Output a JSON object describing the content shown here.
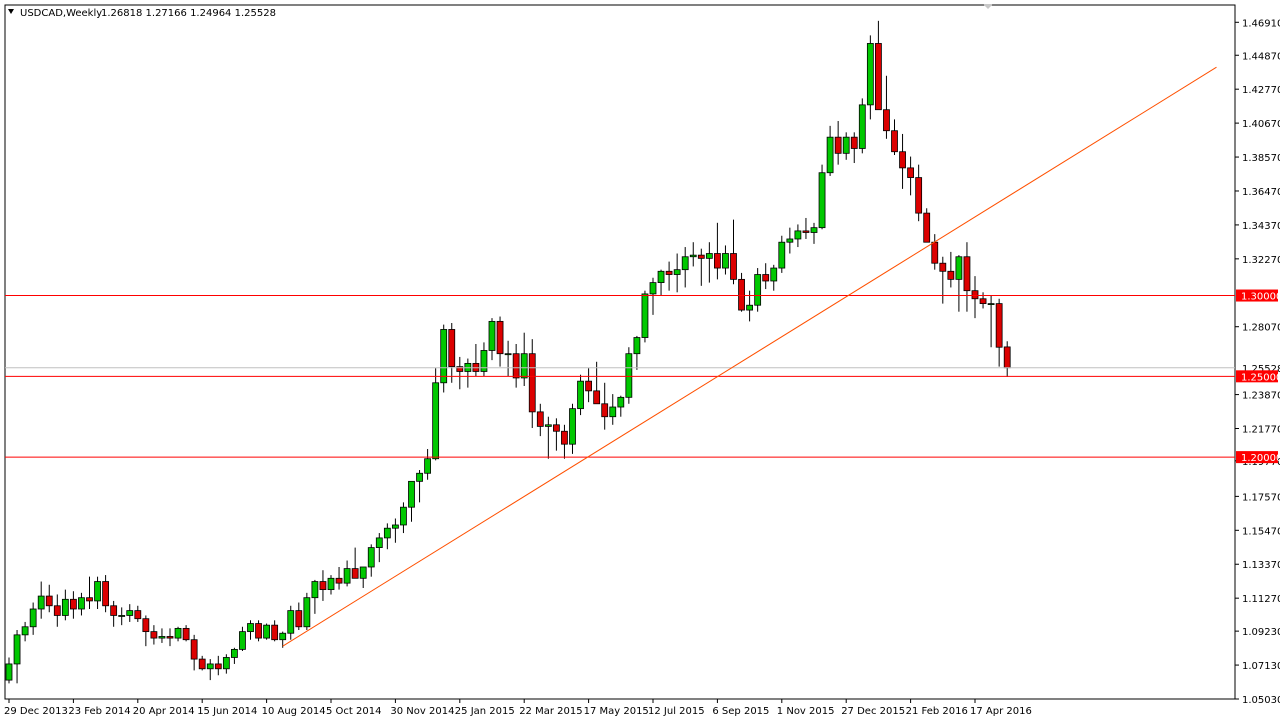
{
  "header": {
    "symbol": "USDCAD,Weekly",
    "ohlc": "1.26818 1.27166 1.24964 1.25528",
    "dropdown_icon": "triangle-down-icon"
  },
  "colors": {
    "background": "#ffffff",
    "frame": "#000000",
    "bull": "#00c800",
    "bear": "#dc0000",
    "hline": "#ff0000",
    "trendline": "#ff5000",
    "bidline": "#c0c0c0"
  },
  "chart_data": {
    "type": "candlestick",
    "ylim": [
      1.0503,
      1.4798
    ],
    "y_ticks": [
      "1.46910",
      "1.44870",
      "1.42770",
      "1.40670",
      "1.38570",
      "1.36470",
      "1.34370",
      "1.32270",
      "1.30000",
      "1.28070",
      "1.25528",
      "1.25000",
      "1.23870",
      "1.21770",
      "1.19770",
      "1.17570",
      "1.15470",
      "1.13370",
      "1.11270",
      "1.09230",
      "1.07130",
      "1.05030"
    ],
    "y_tick_values": [
      1.4691,
      1.4487,
      1.4277,
      1.4067,
      1.3857,
      1.3647,
      1.3437,
      1.3227,
      1.3,
      1.2807,
      1.25528,
      1.25,
      1.2387,
      1.2177,
      1.1977,
      1.1757,
      1.1547,
      1.1337,
      1.1127,
      1.0923,
      1.0713,
      1.0503
    ],
    "x_labels": [
      {
        "text": "29 Dec 2013",
        "index": 0
      },
      {
        "text": "23 Feb 2014",
        "index": 8
      },
      {
        "text": "20 Apr 2014",
        "index": 16
      },
      {
        "text": "15 Jun 2014",
        "index": 24
      },
      {
        "text": "10 Aug 2014",
        "index": 32
      },
      {
        "text": "5 Oct 2014",
        "index": 40
      },
      {
        "text": "30 Nov 2014",
        "index": 48
      },
      {
        "text": "25 Jan 2015",
        "index": 56
      },
      {
        "text": "22 Mar 2015",
        "index": 64
      },
      {
        "text": "17 May 2015",
        "index": 72
      },
      {
        "text": "12 Jul 2015",
        "index": 80
      },
      {
        "text": "6 Sep 2015",
        "index": 88
      },
      {
        "text": "1 Nov 2015",
        "index": 96
      },
      {
        "text": "27 Dec 2015",
        "index": 104
      },
      {
        "text": "21 Feb 2016",
        "index": 112
      },
      {
        "text": "17 Apr 2016",
        "index": 120
      }
    ],
    "horizontal_lines": [
      {
        "value": 1.3,
        "label": "1.30000"
      },
      {
        "value": 1.25,
        "label": "1.25000"
      },
      {
        "value": 1.2,
        "label": "1.20000"
      }
    ],
    "bid_line": {
      "value": 1.25528,
      "label": "1.25528"
    },
    "trendline": {
      "from": {
        "index": 34,
        "value": 1.083
      },
      "to": {
        "index": 150,
        "value": 1.4413
      }
    },
    "candles": [
      [
        1.062,
        1.076,
        1.06,
        1.072
      ],
      [
        1.072,
        1.093,
        1.06,
        1.09
      ],
      [
        1.09,
        1.098,
        1.086,
        1.095
      ],
      [
        1.095,
        1.11,
        1.09,
        1.106
      ],
      [
        1.106,
        1.123,
        1.1,
        1.114
      ],
      [
        1.114,
        1.121,
        1.104,
        1.108
      ],
      [
        1.108,
        1.115,
        1.095,
        1.102
      ],
      [
        1.102,
        1.118,
        1.099,
        1.112
      ],
      [
        1.112,
        1.117,
        1.1,
        1.106
      ],
      [
        1.106,
        1.116,
        1.102,
        1.113
      ],
      [
        1.113,
        1.126,
        1.106,
        1.111
      ],
      [
        1.111,
        1.126,
        1.106,
        1.123
      ],
      [
        1.123,
        1.127,
        1.104,
        1.108
      ],
      [
        1.108,
        1.111,
        1.095,
        1.102
      ],
      [
        1.102,
        1.107,
        1.096,
        1.102
      ],
      [
        1.102,
        1.109,
        1.098,
        1.105
      ],
      [
        1.105,
        1.108,
        1.098,
        1.1
      ],
      [
        1.1,
        1.102,
        1.083,
        1.092
      ],
      [
        1.092,
        1.096,
        1.084,
        1.088
      ],
      [
        1.088,
        1.094,
        1.085,
        1.089
      ],
      [
        1.089,
        1.094,
        1.083,
        1.088
      ],
      [
        1.088,
        1.095,
        1.086,
        1.094
      ],
      [
        1.094,
        1.096,
        1.086,
        1.087
      ],
      [
        1.087,
        1.09,
        1.068,
        1.075
      ],
      [
        1.075,
        1.077,
        1.068,
        1.069
      ],
      [
        1.069,
        1.075,
        1.062,
        1.072
      ],
      [
        1.072,
        1.077,
        1.065,
        1.069
      ],
      [
        1.069,
        1.078,
        1.066,
        1.076
      ],
      [
        1.076,
        1.082,
        1.072,
        1.081
      ],
      [
        1.081,
        1.095,
        1.08,
        1.092
      ],
      [
        1.092,
        1.099,
        1.087,
        1.097
      ],
      [
        1.097,
        1.099,
        1.086,
        1.088
      ],
      [
        1.088,
        1.097,
        1.087,
        1.096
      ],
      [
        1.096,
        1.099,
        1.086,
        1.087
      ],
      [
        1.087,
        1.092,
        1.082,
        1.091
      ],
      [
        1.091,
        1.108,
        1.087,
        1.105
      ],
      [
        1.105,
        1.11,
        1.093,
        1.095
      ],
      [
        1.095,
        1.116,
        1.093,
        1.113
      ],
      [
        1.113,
        1.124,
        1.103,
        1.123
      ],
      [
        1.123,
        1.13,
        1.111,
        1.118
      ],
      [
        1.118,
        1.127,
        1.115,
        1.125
      ],
      [
        1.125,
        1.132,
        1.118,
        1.122
      ],
      [
        1.122,
        1.136,
        1.12,
        1.131
      ],
      [
        1.131,
        1.144,
        1.126,
        1.125
      ],
      [
        1.125,
        1.132,
        1.119,
        1.132
      ],
      [
        1.132,
        1.146,
        1.126,
        1.144
      ],
      [
        1.144,
        1.153,
        1.135,
        1.15
      ],
      [
        1.15,
        1.159,
        1.143,
        1.156
      ],
      [
        1.156,
        1.162,
        1.147,
        1.158
      ],
      [
        1.158,
        1.172,
        1.153,
        1.169
      ],
      [
        1.169,
        1.185,
        1.16,
        1.185
      ],
      [
        1.185,
        1.192,
        1.172,
        1.19
      ],
      [
        1.19,
        1.205,
        1.186,
        1.199
      ],
      [
        1.199,
        1.255,
        1.198,
        1.246
      ],
      [
        1.246,
        1.282,
        1.24,
        1.279
      ],
      [
        1.279,
        1.283,
        1.246,
        1.256
      ],
      [
        1.256,
        1.262,
        1.242,
        1.253
      ],
      [
        1.253,
        1.261,
        1.243,
        1.258
      ],
      [
        1.258,
        1.27,
        1.25,
        1.253
      ],
      [
        1.253,
        1.271,
        1.25,
        1.266
      ],
      [
        1.266,
        1.286,
        1.26,
        1.284
      ],
      [
        1.284,
        1.287,
        1.256,
        1.264
      ],
      [
        1.264,
        1.272,
        1.25,
        1.264
      ],
      [
        1.264,
        1.27,
        1.243,
        1.249
      ],
      [
        1.249,
        1.277,
        1.244,
        1.264
      ],
      [
        1.264,
        1.273,
        1.218,
        1.228
      ],
      [
        1.228,
        1.233,
        1.213,
        1.219
      ],
      [
        1.219,
        1.225,
        1.199,
        1.22
      ],
      [
        1.22,
        1.224,
        1.204,
        1.216
      ],
      [
        1.216,
        1.22,
        1.199,
        1.208
      ],
      [
        1.208,
        1.233,
        1.202,
        1.23
      ],
      [
        1.23,
        1.251,
        1.226,
        1.247
      ],
      [
        1.247,
        1.255,
        1.234,
        1.241
      ],
      [
        1.241,
        1.259,
        1.235,
        1.233
      ],
      [
        1.233,
        1.246,
        1.217,
        1.225
      ],
      [
        1.225,
        1.239,
        1.22,
        1.231
      ],
      [
        1.231,
        1.238,
        1.225,
        1.237
      ],
      [
        1.237,
        1.268,
        1.233,
        1.264
      ],
      [
        1.264,
        1.275,
        1.254,
        1.274
      ],
      [
        1.274,
        1.303,
        1.271,
        1.301
      ],
      [
        1.301,
        1.311,
        1.288,
        1.308
      ],
      [
        1.308,
        1.316,
        1.3,
        1.315
      ],
      [
        1.315,
        1.321,
        1.303,
        1.313
      ],
      [
        1.313,
        1.326,
        1.302,
        1.316
      ],
      [
        1.316,
        1.33,
        1.305,
        1.324
      ],
      [
        1.324,
        1.333,
        1.318,
        1.325
      ],
      [
        1.325,
        1.329,
        1.306,
        1.323
      ],
      [
        1.323,
        1.333,
        1.308,
        1.326
      ],
      [
        1.326,
        1.345,
        1.31,
        1.317
      ],
      [
        1.317,
        1.331,
        1.313,
        1.326
      ],
      [
        1.326,
        1.347,
        1.307,
        1.31
      ],
      [
        1.31,
        1.314,
        1.29,
        1.291
      ],
      [
        1.291,
        1.303,
        1.284,
        1.294
      ],
      [
        1.294,
        1.317,
        1.29,
        1.313
      ],
      [
        1.313,
        1.32,
        1.304,
        1.309
      ],
      [
        1.309,
        1.319,
        1.303,
        1.317
      ],
      [
        1.317,
        1.337,
        1.314,
        1.333
      ],
      [
        1.333,
        1.342,
        1.326,
        1.335
      ],
      [
        1.335,
        1.344,
        1.33,
        1.34
      ],
      [
        1.34,
        1.348,
        1.335,
        1.339
      ],
      [
        1.339,
        1.345,
        1.332,
        1.342
      ],
      [
        1.342,
        1.381,
        1.341,
        1.376
      ],
      [
        1.376,
        1.405,
        1.374,
        1.398
      ],
      [
        1.398,
        1.408,
        1.381,
        1.388
      ],
      [
        1.388,
        1.401,
        1.384,
        1.398
      ],
      [
        1.398,
        1.401,
        1.382,
        1.391
      ],
      [
        1.391,
        1.422,
        1.388,
        1.418
      ],
      [
        1.418,
        1.461,
        1.409,
        1.456
      ],
      [
        1.456,
        1.47,
        1.417,
        1.415
      ],
      [
        1.415,
        1.436,
        1.397,
        1.402
      ],
      [
        1.402,
        1.409,
        1.387,
        1.389
      ],
      [
        1.389,
        1.4,
        1.366,
        1.379
      ],
      [
        1.379,
        1.386,
        1.362,
        1.373
      ],
      [
        1.373,
        1.381,
        1.346,
        1.351
      ],
      [
        1.351,
        1.354,
        1.333,
        1.333
      ],
      [
        1.333,
        1.338,
        1.316,
        1.32
      ],
      [
        1.32,
        1.324,
        1.295,
        1.315
      ],
      [
        1.315,
        1.327,
        1.305,
        1.31
      ],
      [
        1.31,
        1.325,
        1.29,
        1.324
      ],
      [
        1.324,
        1.333,
        1.29,
        1.303
      ],
      [
        1.303,
        1.312,
        1.286,
        1.298
      ],
      [
        1.298,
        1.302,
        1.292,
        1.295
      ],
      [
        1.295,
        1.3,
        1.268,
        1.295
      ],
      [
        1.295,
        1.298,
        1.256,
        1.268
      ],
      [
        1.2682,
        1.2717,
        1.2496,
        1.2553
      ]
    ]
  }
}
